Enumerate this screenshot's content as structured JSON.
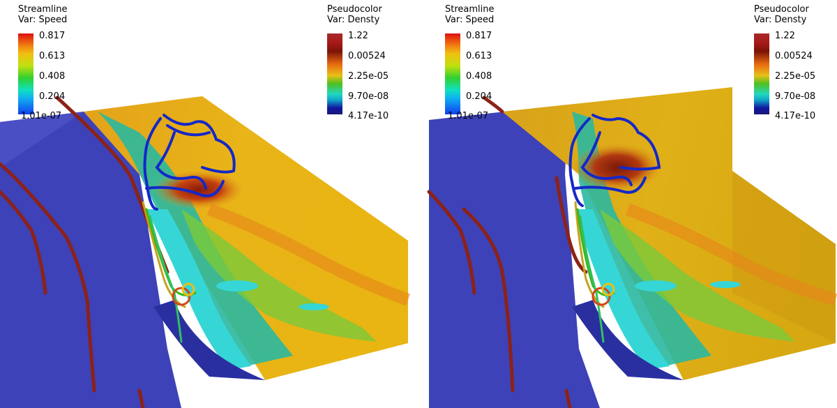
{
  "panels": [
    {
      "streamline_legend": {
        "title": "Streamline",
        "var": "Var: Speed",
        "ticks": [
          "0.817",
          "0.613",
          "0.408",
          "0.204",
          "1.01e-07"
        ]
      },
      "pseudocolor_legend": {
        "title": "Pseudocolor",
        "var": "Var: Densty",
        "ticks": [
          "1.22",
          "0.00524",
          "2.25e-05",
          "9.70e-08",
          "4.17e-10"
        ]
      }
    },
    {
      "streamline_legend": {
        "title": "Streamline",
        "var": "Var: Speed",
        "ticks": [
          "0.817",
          "0.613",
          "0.408",
          "0.204",
          "1.01e-07"
        ]
      },
      "pseudocolor_legend": {
        "title": "Pseudocolor",
        "var": "Var: Densty",
        "ticks": [
          "1.22",
          "0.00524",
          "2.25e-05",
          "9.70e-08",
          "4.17e-10"
        ]
      }
    }
  ]
}
